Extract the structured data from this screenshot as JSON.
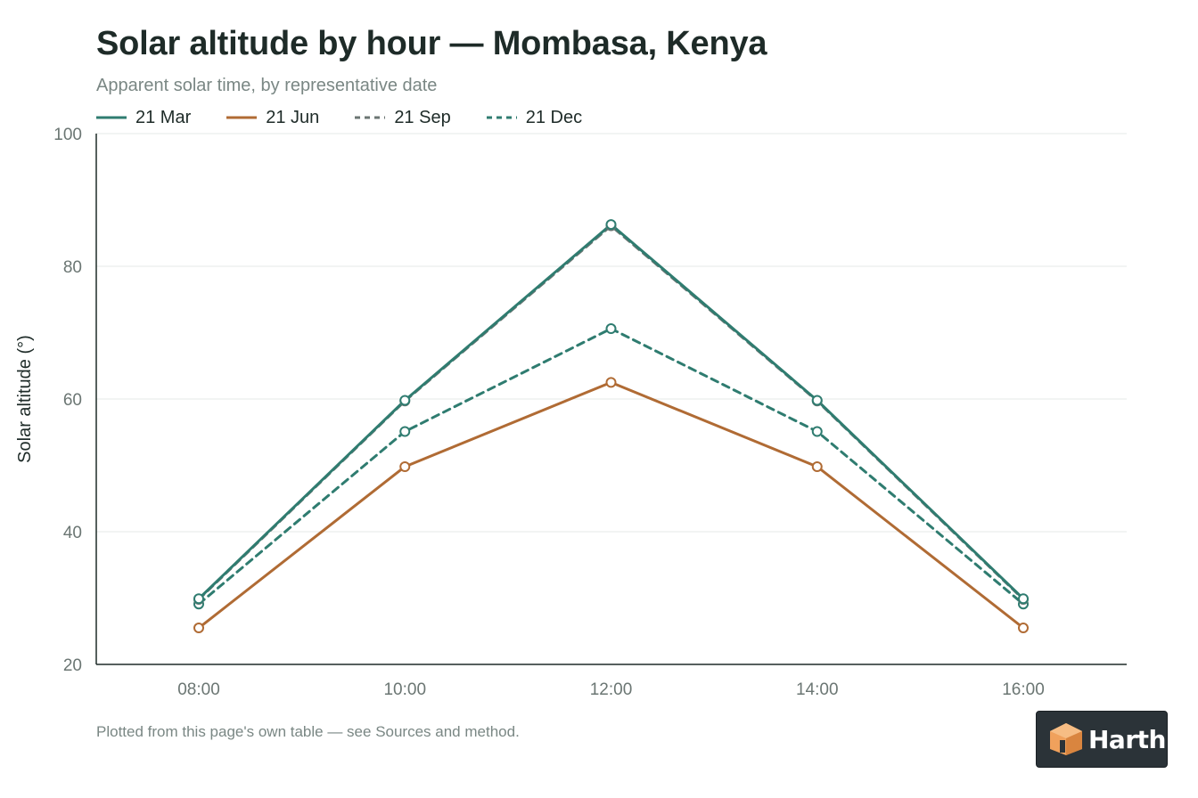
{
  "header": {
    "title": "Solar altitude by hour — Mombasa, Kenya",
    "subtitle": "Apparent solar time, by representative date"
  },
  "footer": {
    "note": "Plotted from this page's own table — see Sources and method.",
    "logo_text": "Harth"
  },
  "colors": {
    "teal": "#2f7c70",
    "orange": "#b06b34",
    "grey": "#6b7673",
    "axis": "#1e2b28",
    "grid": "#e4e8e7",
    "tick_text": "#6b7673",
    "logo_bg": "#2b3338",
    "logo_orange": "#f0a15c"
  },
  "chart_data": {
    "type": "line",
    "title": "Solar altitude by hour — Mombasa, Kenya",
    "subtitle": "Apparent solar time, by representative date",
    "xlabel": "",
    "ylabel": "Solar altitude (°)",
    "categories": [
      "08:00",
      "10:00",
      "12:00",
      "14:00",
      "16:00"
    ],
    "ylim": [
      20,
      100
    ],
    "yticks": [
      20,
      40,
      60,
      80,
      100
    ],
    "grid": true,
    "legend_position": "top-left",
    "series": [
      {
        "name": "21 Mar",
        "values": [
          29.9,
          59.8,
          86.3,
          59.8,
          29.9
        ],
        "color": "#2f7c70",
        "dash": "solid"
      },
      {
        "name": "21 Jun",
        "values": [
          25.5,
          49.8,
          62.5,
          49.8,
          25.5
        ],
        "color": "#b06b34",
        "dash": "solid"
      },
      {
        "name": "21 Sep",
        "values": [
          29.8,
          59.7,
          86.1,
          59.7,
          29.8
        ],
        "color": "#6b7673",
        "dash": "dashed"
      },
      {
        "name": "21 Dec",
        "values": [
          29.1,
          55.1,
          70.6,
          55.1,
          29.1
        ],
        "color": "#2f7c70",
        "dash": "dashed"
      }
    ]
  }
}
